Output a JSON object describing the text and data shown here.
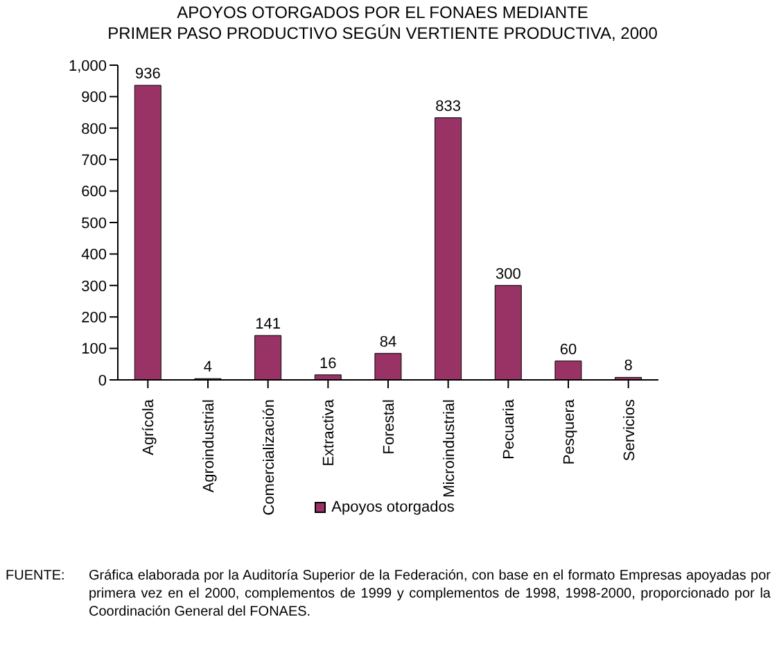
{
  "chart_data": {
    "type": "bar",
    "title": "APOYOS OTORGADOS POR EL FONAES MEDIANTE\nPRIMER PASO PRODUCTIVO SEGÚN VERTIENTE PRODUCTIVA, 2000",
    "categories": [
      "Agrícola",
      "Agroindustrial",
      "Comercialización",
      "Extractiva",
      "Forestal",
      "Microindustrial",
      "Pecuaria",
      "Pesquera",
      "Servicios"
    ],
    "series": [
      {
        "name": "Apoyos otorgados",
        "color": "#993366",
        "values": [
          936,
          4,
          141,
          16,
          84,
          833,
          300,
          60,
          8
        ]
      }
    ],
    "ylim": [
      0,
      1000
    ],
    "yticks": [
      0,
      100,
      200,
      300,
      400,
      500,
      600,
      700,
      800,
      900,
      {
        "value": 1000,
        "label": "1,000"
      }
    ],
    "data_labels": true,
    "grid": false,
    "legend": "bottom",
    "annotations": [
      "FUENTE:",
      "Gráfica elaborada por la Auditoría Superior de la Federación, con base en el formato Empresas apoyadas por primera vez en el 2000, complementos de 1999 y complementos de 1998, 1998-2000, proporcionado por la Coordinación General del FONAES."
    ]
  }
}
